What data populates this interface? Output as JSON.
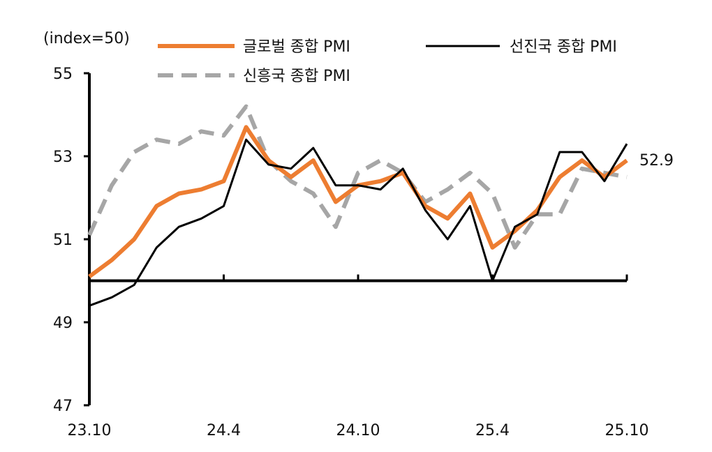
{
  "chart_data": {
    "type": "line",
    "unit_label": "(index=50)",
    "ylim": [
      47,
      55
    ],
    "yticks": [
      55,
      53,
      51,
      49,
      47
    ],
    "reference_line": 50,
    "x": [
      "23.10",
      "23.11",
      "23.12",
      "24.1",
      "24.2",
      "24.3",
      "24.4",
      "24.5",
      "24.6",
      "24.7",
      "24.8",
      "24.9",
      "24.10",
      "24.11",
      "24.12",
      "25.1",
      "25.2",
      "25.3",
      "25.4",
      "25.5",
      "25.6",
      "25.7",
      "25.8",
      "25.9",
      "25.10"
    ],
    "x_tick_labels": [
      "23.10",
      "24.4",
      "24.10",
      "25.4",
      "25.10"
    ],
    "series": [
      {
        "name": "글로벌 종합 PMI",
        "color": "#ED7D31",
        "style": "solid",
        "width": 6,
        "values": [
          50.1,
          50.5,
          51.0,
          51.8,
          52.1,
          52.2,
          52.4,
          53.7,
          52.9,
          52.5,
          52.9,
          51.9,
          52.3,
          52.4,
          52.6,
          51.8,
          51.5,
          52.1,
          50.8,
          51.2,
          51.7,
          52.5,
          52.9,
          52.5,
          52.9
        ]
      },
      {
        "name": "선진국 종합 PMI",
        "color": "#000000",
        "style": "solid",
        "width": 3,
        "values": [
          49.4,
          49.6,
          49.9,
          50.8,
          51.3,
          51.5,
          51.8,
          53.4,
          52.8,
          52.7,
          53.2,
          52.3,
          52.3,
          52.2,
          52.7,
          51.7,
          51.0,
          51.8,
          50.0,
          51.3,
          51.6,
          53.1,
          53.1,
          52.4,
          53.3
        ]
      },
      {
        "name": "신흥국 종합 PMI",
        "color": "#A6A6A6",
        "style": "dashed",
        "width": 6,
        "values": [
          51.1,
          52.3,
          53.1,
          53.4,
          53.3,
          53.6,
          53.5,
          54.2,
          52.9,
          52.4,
          52.1,
          51.3,
          52.6,
          52.9,
          52.6,
          51.9,
          52.2,
          52.6,
          52.1,
          50.8,
          51.6,
          51.6,
          52.7,
          52.6,
          52.5
        ]
      }
    ],
    "end_label": "52.9",
    "legend_position": "top",
    "grid": false
  }
}
